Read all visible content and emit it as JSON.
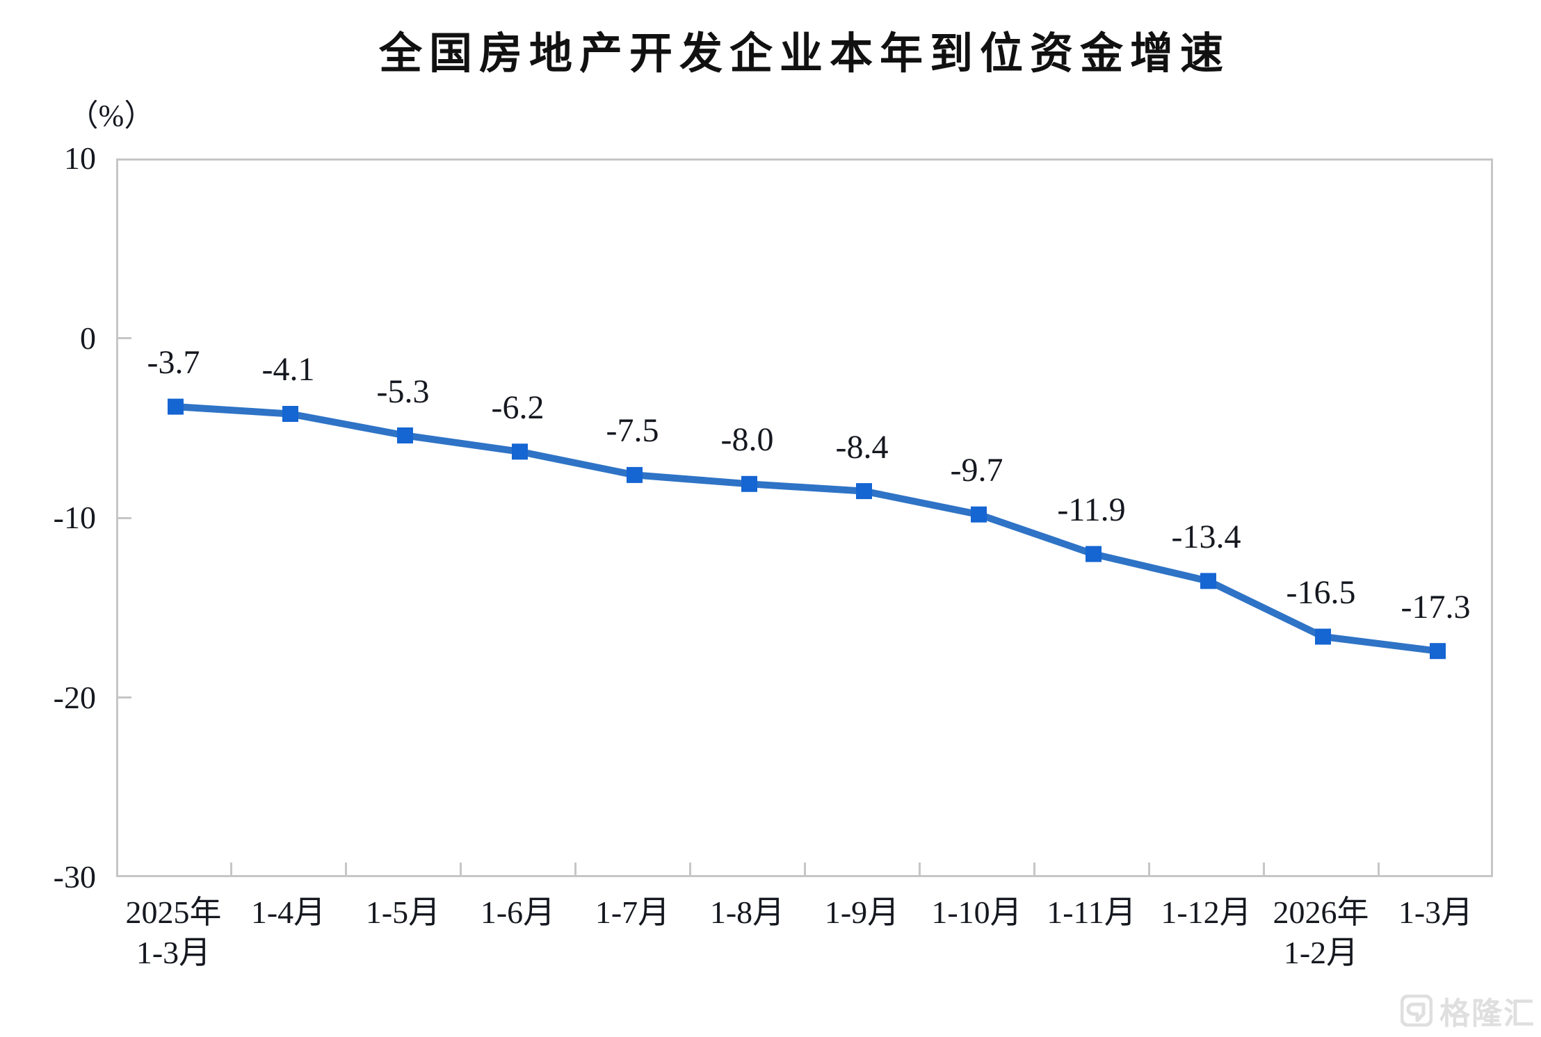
{
  "title": "全国房地产开发企业本年到位资金增速",
  "watermark": {
    "logo_icon": "gelonghui-g-icon",
    "text": "格隆汇"
  },
  "chart_data": {
    "type": "line",
    "title": "全国房地产开发企业本年到位资金增速",
    "unit_label": "（%）",
    "categories": [
      "2025年\n1-3月",
      "1-4月",
      "1-5月",
      "1-6月",
      "1-7月",
      "1-8月",
      "1-9月",
      "1-10月",
      "1-11月",
      "1-12月",
      "2026年\n1-2月",
      "1-3月"
    ],
    "values": [
      -3.7,
      -4.1,
      -5.3,
      -6.2,
      -7.5,
      -8.0,
      -8.4,
      -9.7,
      -11.9,
      -13.4,
      -16.5,
      -17.3
    ],
    "point_labels": [
      "-3.7",
      "-4.1",
      "-5.3",
      "-6.2",
      "-7.5",
      "-8.0",
      "-8.4",
      "-9.7",
      "-11.9",
      "-13.4",
      "-16.5",
      "-17.3"
    ],
    "xlabel": "",
    "ylabel": "（%）",
    "ylim": [
      -30,
      10
    ],
    "yticks": [
      10,
      0,
      -10,
      -20,
      -30
    ],
    "grid": false,
    "legend": "none",
    "marker": "square",
    "colors": {
      "line": "#2E73C6",
      "marker": "#1565D2",
      "axis": "#C6C6C6",
      "label_text": "#15181F",
      "title_text": "#111111",
      "watermark": "#DFDFDF"
    }
  }
}
